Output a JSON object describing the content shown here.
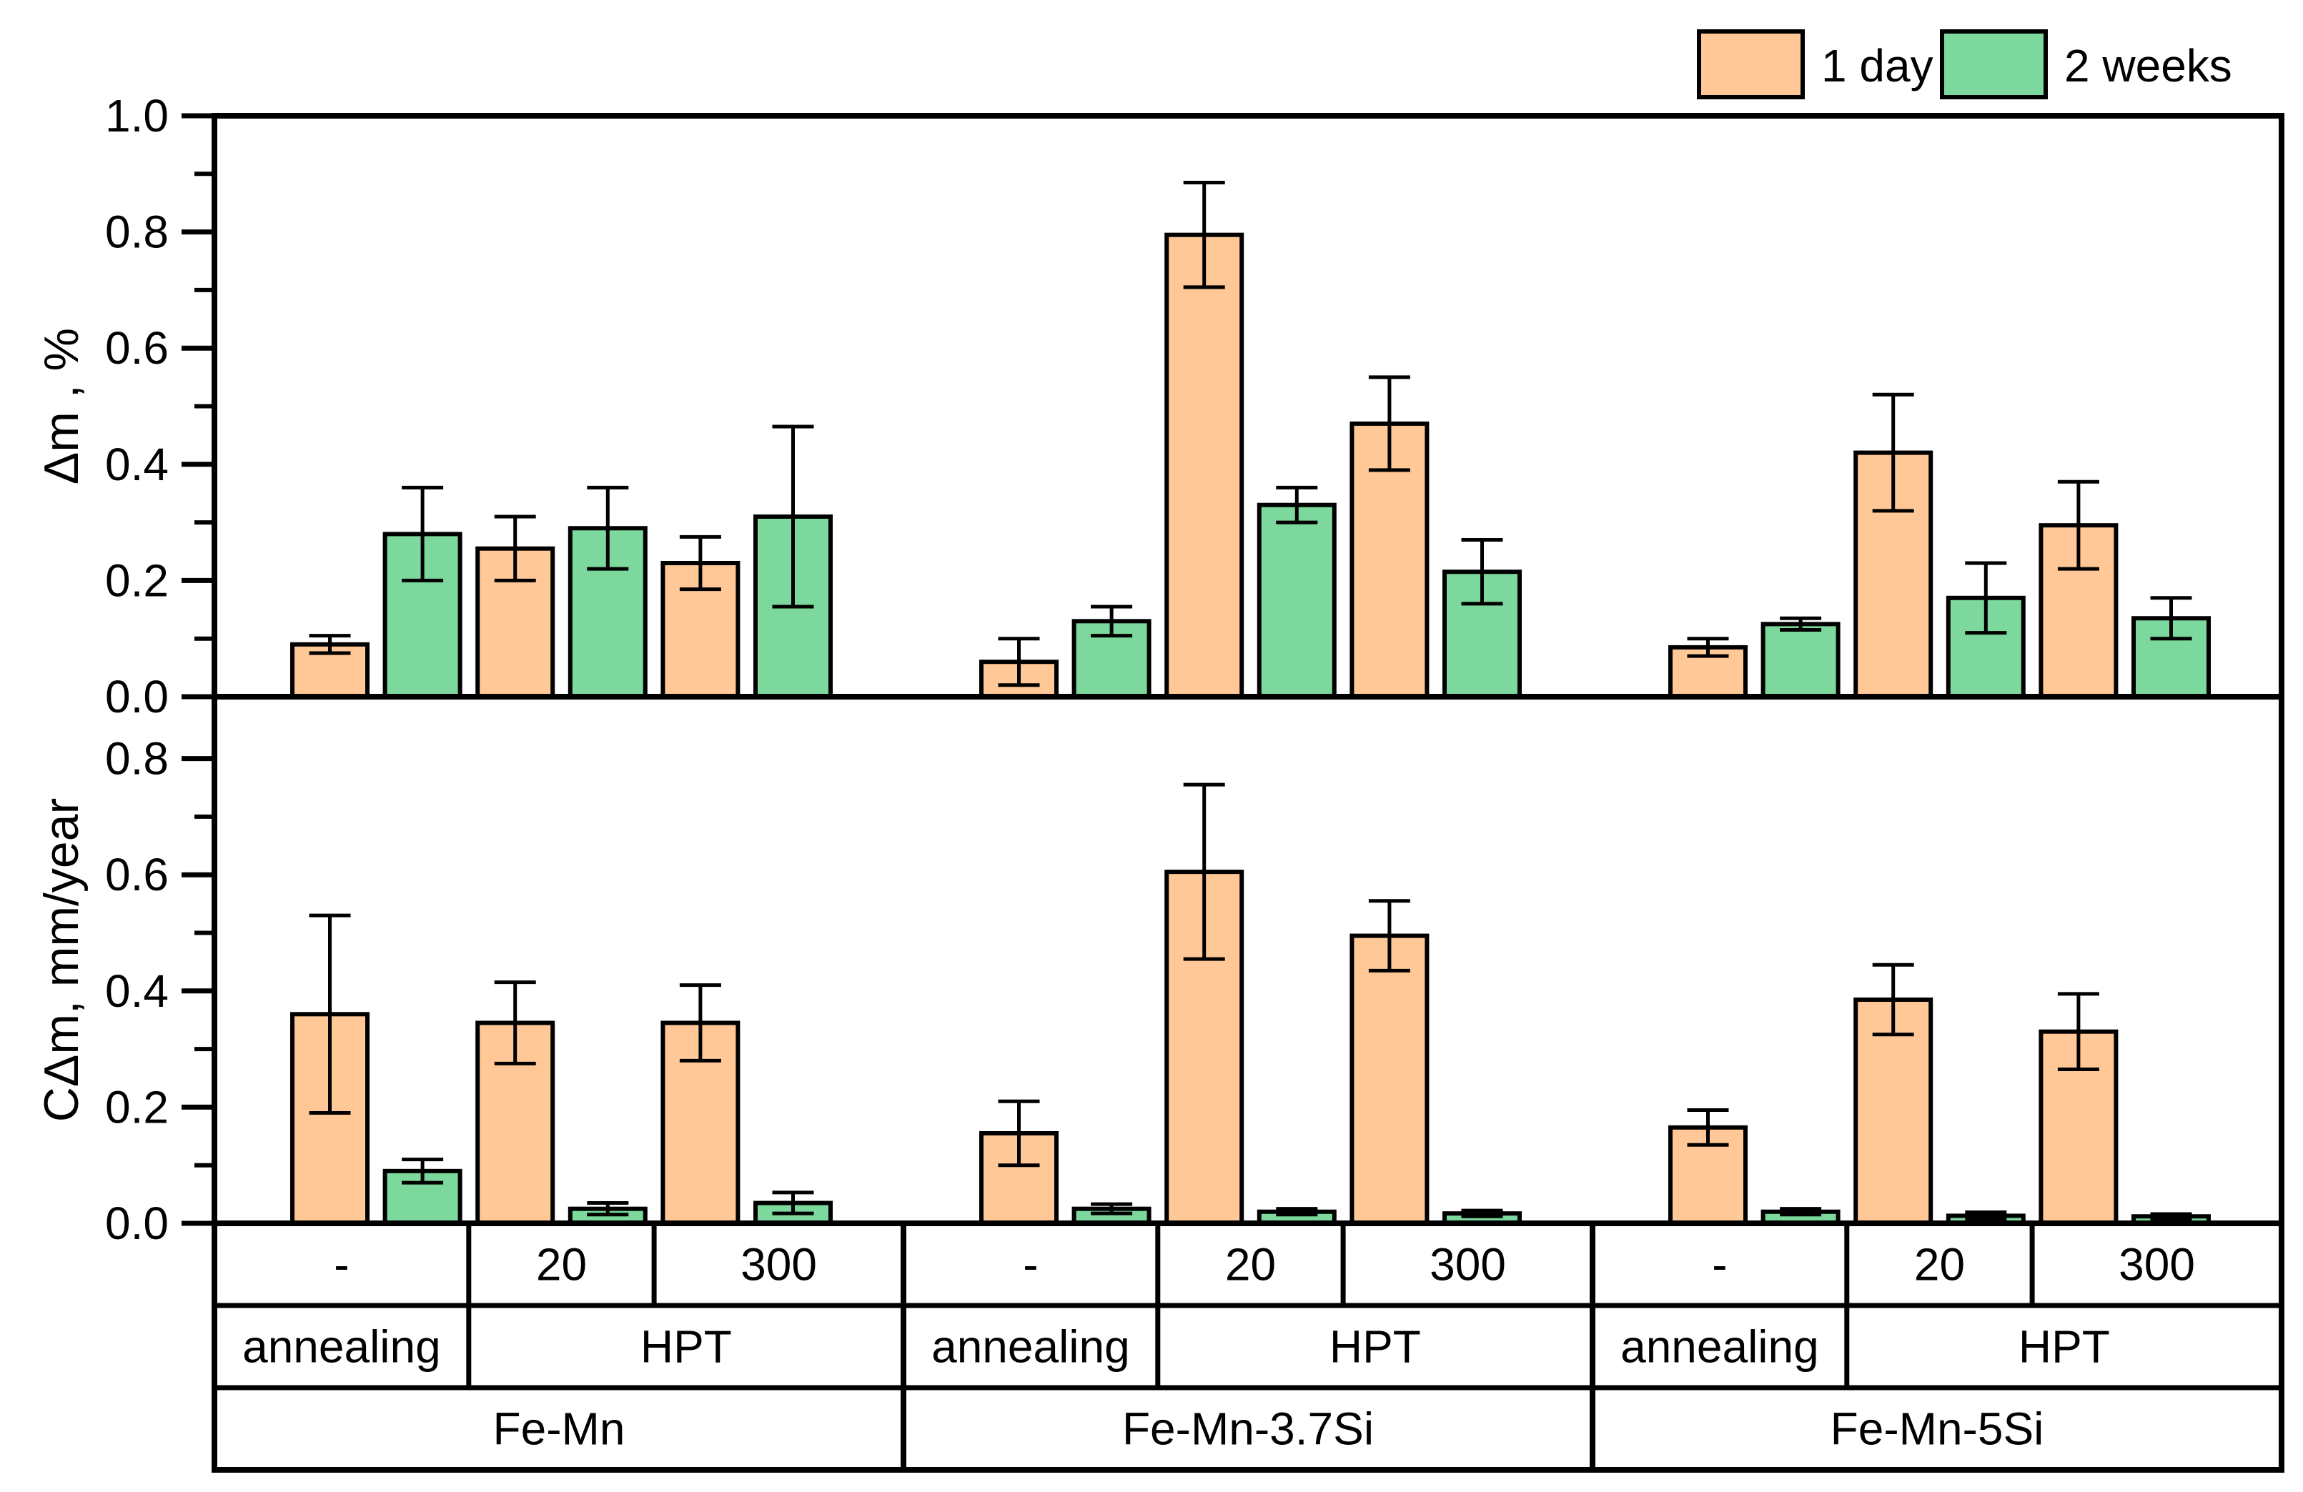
{
  "chart_data": {
    "type": "bar",
    "title": "",
    "legend_position": "top-right",
    "grid": false,
    "colors": {
      "one_day": "#FFC896",
      "two_weeks": "#7CD89C",
      "outline": "#000000",
      "background": "#FFFFFF"
    },
    "legend": [
      {
        "label": "1 day",
        "color": "#FFC896"
      },
      {
        "label": "2 weeks",
        "color": "#7CD89C"
      }
    ],
    "groups": [
      "Fe-Mn",
      "Fe-Mn-3.7Si",
      "Fe-Mn-5Si"
    ],
    "conditions_per_group": [
      "-",
      "20",
      "300"
    ],
    "panels": [
      {
        "ylabel": "Δm , %",
        "ylim": [
          0,
          1.0
        ],
        "ytick_values": [
          0.0,
          0.2,
          0.4,
          0.6,
          0.8,
          1.0
        ],
        "ytick_labels": [
          "0.0",
          "0.2",
          "0.4",
          "0.6",
          "0.8",
          "1.0"
        ],
        "minor_tick_step": 0.1,
        "values": [
          [
            [
              0.09,
              0.28
            ],
            [
              0.255,
              0.29
            ],
            [
              0.23,
              0.31
            ]
          ],
          [
            [
              0.06,
              0.13
            ],
            [
              0.795,
              0.33
            ],
            [
              0.47,
              0.215
            ]
          ],
          [
            [
              0.085,
              0.125
            ],
            [
              0.42,
              0.17
            ],
            [
              0.295,
              0.135
            ]
          ]
        ],
        "errors": [
          [
            [
              0.015,
              0.08
            ],
            [
              0.055,
              0.07
            ],
            [
              0.045,
              0.155
            ]
          ],
          [
            [
              0.04,
              0.025
            ],
            [
              0.09,
              0.03
            ],
            [
              0.08,
              0.055
            ]
          ],
          [
            [
              0.015,
              0.01
            ],
            [
              0.1,
              0.06
            ],
            [
              0.075,
              0.035
            ]
          ]
        ]
      },
      {
        "ylabel": "CΔm, mm/year",
        "ylim": [
          0,
          0.906
        ],
        "ytick_values": [
          0.0,
          0.2,
          0.4,
          0.6,
          0.8
        ],
        "ytick_labels": [
          "0.0",
          "0.2",
          "0.4",
          "0.6",
          "0.8"
        ],
        "minor_tick_step": 0.1,
        "values": [
          [
            [
              0.36,
              0.09
            ],
            [
              0.345,
              0.025
            ],
            [
              0.345,
              0.035
            ]
          ],
          [
            [
              0.155,
              0.025
            ],
            [
              0.605,
              0.02
            ],
            [
              0.495,
              0.017
            ]
          ],
          [
            [
              0.165,
              0.02
            ],
            [
              0.385,
              0.013
            ],
            [
              0.33,
              0.012
            ]
          ]
        ],
        "errors": [
          [
            [
              0.17,
              0.02
            ],
            [
              0.07,
              0.01
            ],
            [
              0.065,
              0.018
            ]
          ],
          [
            [
              0.055,
              0.008
            ],
            [
              0.15,
              0.005
            ],
            [
              0.06,
              0.005
            ]
          ],
          [
            [
              0.03,
              0.005
            ],
            [
              0.06,
              0.006
            ],
            [
              0.065,
              0.004
            ]
          ]
        ]
      }
    ],
    "table": {
      "temperature_labels": [
        "-",
        "20",
        "300"
      ],
      "treatment_labels": [
        "annealing",
        "HPT"
      ],
      "alloys": [
        "Fe-Mn",
        "Fe-Mn-3.7Si",
        "Fe-Mn-5Si"
      ]
    }
  }
}
